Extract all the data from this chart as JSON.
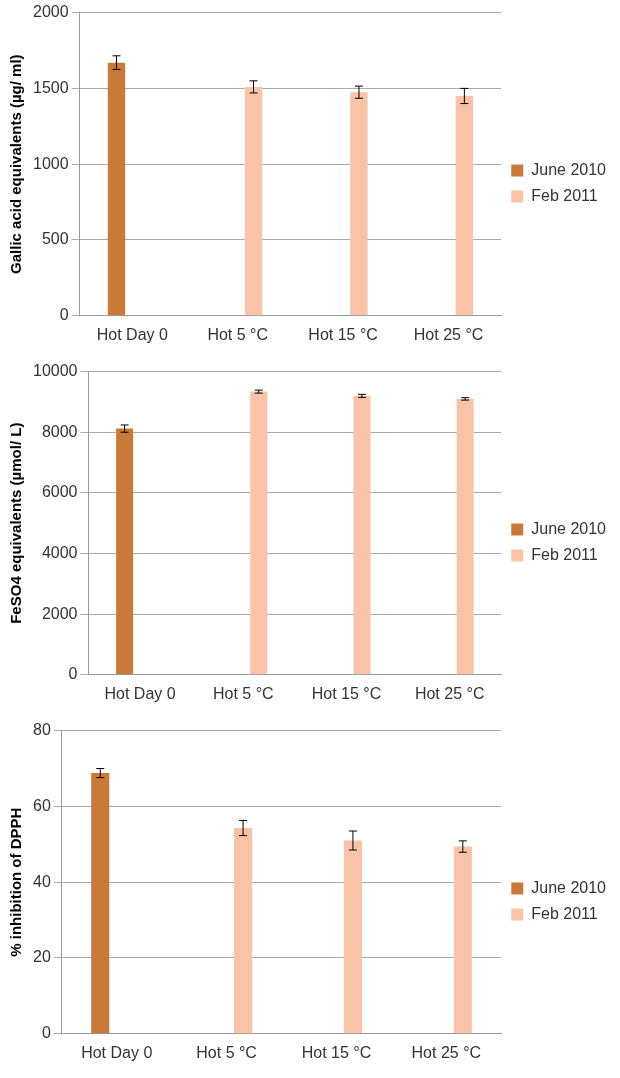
{
  "chart_data": [
    {
      "type": "bar",
      "categories": [
        "Hot Day 0",
        "Hot 5 °C",
        "Hot 15 °C",
        "Hot 25 °C"
      ],
      "ylabel": "Gallic acid equivalents (µg/ ml)",
      "ylim": [
        0,
        2000
      ],
      "yticks": [
        0,
        500,
        1000,
        1500,
        2000
      ],
      "grid": "y",
      "legend": "right",
      "series": [
        {
          "name": "June 2010",
          "color": "#c97a37",
          "values": [
            1670,
            null,
            null,
            null
          ],
          "errors": [
            45,
            null,
            null,
            null
          ]
        },
        {
          "name": "Feb 2011",
          "color": "#f9c3a8",
          "values": [
            null,
            1510,
            1475,
            1450
          ],
          "errors": [
            null,
            40,
            40,
            50
          ]
        }
      ]
    },
    {
      "type": "bar",
      "categories": [
        "Hot Day 0",
        "Hot 5 °C",
        "Hot 15 °C",
        "Hot 25 °C"
      ],
      "ylabel": "FeSO4 equivalents (µmol/ L)",
      "ylim": [
        0,
        10000
      ],
      "yticks": [
        0,
        2000,
        4000,
        6000,
        8000,
        10000
      ],
      "grid": "y",
      "legend": "right",
      "series": [
        {
          "name": "June 2010",
          "color": "#c97a37",
          "values": [
            8120,
            null,
            null,
            null
          ],
          "errors": [
            120,
            null,
            null,
            null
          ]
        },
        {
          "name": "Feb 2011",
          "color": "#f9c3a8",
          "values": [
            null,
            9340,
            9200,
            9100
          ],
          "errors": [
            null,
            50,
            50,
            40
          ]
        }
      ]
    },
    {
      "type": "bar",
      "categories": [
        "Hot Day 0",
        "Hot 5 °C",
        "Hot 15 °C",
        "Hot 25 °C"
      ],
      "ylabel": "% inhibition of DPPH",
      "ylim": [
        0,
        80
      ],
      "yticks": [
        0,
        20,
        40,
        60,
        80
      ],
      "grid": "y",
      "legend": "right",
      "series": [
        {
          "name": "June 2010",
          "color": "#c97a37",
          "values": [
            68.8,
            null,
            null,
            null
          ],
          "errors": [
            1.2,
            null,
            null,
            null
          ]
        },
        {
          "name": "Feb 2011",
          "color": "#f9c3a8",
          "values": [
            null,
            54.3,
            51,
            49.4
          ],
          "errors": [
            null,
            2,
            2.5,
            1.5
          ]
        }
      ]
    }
  ]
}
